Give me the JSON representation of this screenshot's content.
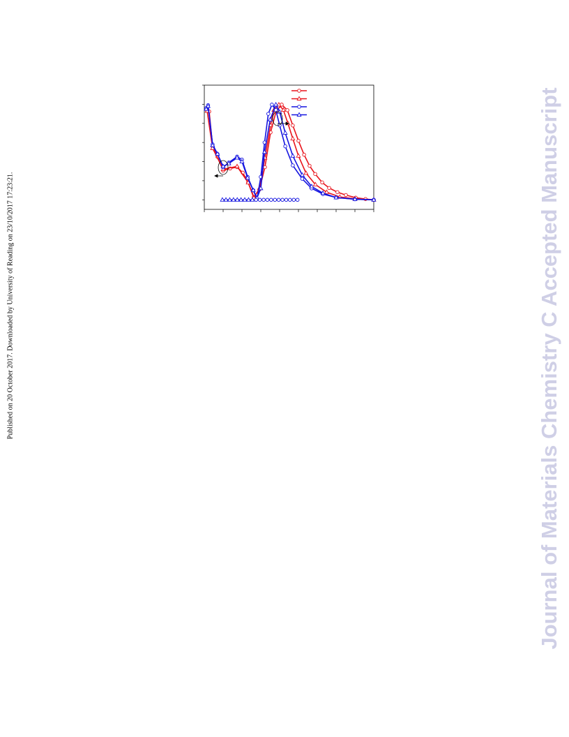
{
  "publication_note": "Published on 20 October 2017. Downloaded by University of Reading on 23/10/2017 17:23:21.",
  "watermark": "Journal of Materials Chemistry C Accepted Manuscript",
  "chart_data": {
    "type": "line",
    "xlim": [
      0,
      9
    ],
    "xticks": [
      0,
      1,
      2,
      3,
      4,
      5,
      6,
      7,
      8,
      9
    ],
    "ylim": [
      -0.5,
      6
    ],
    "yticks": [
      0,
      1,
      2,
      3,
      4,
      5,
      6
    ],
    "series": [
      {
        "color": "#e8141c",
        "marker": "circle",
        "x": [
          0.15,
          0.26,
          0.44,
          0.7,
          1.0,
          1.37,
          1.74,
          2.04,
          2.33,
          2.63,
          2.93,
          3.22,
          3.52,
          3.81,
          4.11,
          4.41,
          4.7,
          5.0,
          5.3,
          5.59,
          5.89,
          6.26,
          6.63,
          7.07,
          7.52,
          8.04,
          8.56,
          9.0
        ],
        "values": [
          4.69,
          4.62,
          2.8,
          2.25,
          1.53,
          1.64,
          1.71,
          1.42,
          0.91,
          0.15,
          0.55,
          1.71,
          3.53,
          4.62,
          4.98,
          4.69,
          3.89,
          3.09,
          2.36,
          1.78,
          1.35,
          0.91,
          0.62,
          0.4,
          0.25,
          0.11,
          0.04,
          0.0
        ]
      },
      {
        "color": "#e8141c",
        "marker": "triangle",
        "x": [
          0.15,
          0.44,
          1.0,
          1.74,
          2.33,
          2.63,
          2.93,
          3.22,
          3.52,
          3.7,
          3.96,
          4.2,
          4.44,
          4.7,
          5.0,
          5.4,
          5.9,
          6.5,
          7.2,
          8.0,
          9.0
        ],
        "values": [
          4.65,
          2.7,
          1.6,
          1.75,
          0.9,
          0.1,
          0.6,
          2.2,
          3.9,
          4.7,
          4.98,
          4.7,
          4.0,
          3.2,
          2.3,
          1.4,
          0.8,
          0.4,
          0.15,
          0.05,
          0.0
        ]
      },
      {
        "color": "#1414e0",
        "marker": "circle",
        "x": [
          0.1,
          0.2,
          0.44,
          0.7,
          1.0,
          1.3,
          1.74,
          2.0,
          2.3,
          2.6,
          2.8,
          3.0,
          3.2,
          3.4,
          3.59,
          3.8,
          4.0,
          4.3,
          4.7,
          5.2,
          5.7,
          6.3,
          7.0,
          8.0,
          9.0
        ],
        "values": [
          4.8,
          4.95,
          2.9,
          2.4,
          1.7,
          1.95,
          2.26,
          2.1,
          1.2,
          0.5,
          0.05,
          1.2,
          3.0,
          4.5,
          4.98,
          4.7,
          3.9,
          2.8,
          1.8,
          1.1,
          0.6,
          0.3,
          0.12,
          0.03,
          0.0
        ]
      },
      {
        "color": "#1414e0",
        "marker": "triangle",
        "x": [
          0.1,
          0.2,
          0.44,
          0.7,
          1.0,
          1.3,
          1.74,
          2.0,
          2.3,
          2.6,
          2.8,
          3.0,
          3.2,
          3.5,
          3.8,
          4.0,
          4.3,
          4.7,
          5.2,
          5.7,
          6.3,
          7.0,
          8.0,
          9.0
        ],
        "values": [
          4.75,
          4.9,
          2.85,
          2.4,
          1.75,
          1.9,
          2.2,
          2.0,
          1.15,
          0.5,
          0.1,
          0.6,
          2.5,
          4.2,
          4.98,
          4.6,
          3.5,
          2.3,
          1.3,
          0.7,
          0.35,
          0.12,
          0.03,
          0.0
        ]
      },
      {
        "color": "#1414e0",
        "marker": "triangle",
        "x": [
          0.96,
          1.15,
          1.35,
          1.55,
          1.75,
          1.95,
          2.15,
          2.35,
          2.55
        ],
        "values": [
          0,
          0,
          0,
          0,
          0,
          0,
          0,
          0,
          0
        ]
      },
      {
        "color": "#1414e0",
        "marker": "circle",
        "x": [
          2.75,
          2.95,
          3.15,
          3.35,
          3.55,
          3.75,
          3.95,
          4.15,
          4.35,
          4.55,
          4.75,
          4.95
        ],
        "values": [
          0,
          0,
          0,
          0,
          0,
          0,
          0,
          0,
          0,
          0,
          0,
          0
        ]
      }
    ]
  }
}
